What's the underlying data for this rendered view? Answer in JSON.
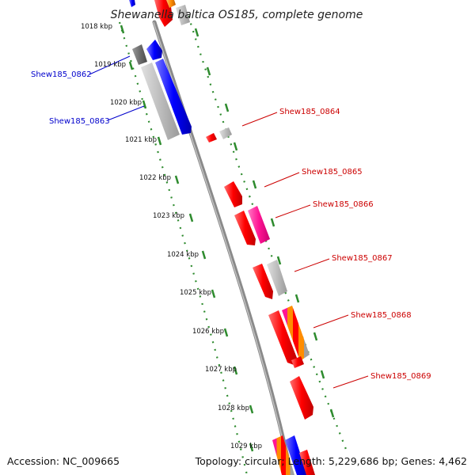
{
  "title": "Shewanella baltica OS185, complete genome",
  "accession_text": "Accession: NC_009665",
  "summary_text": "Topology: circular; Length: 5,229,686 bp; Genes: 4,462",
  "colors": {
    "backbone": "#888888",
    "tick_dots": "#2e8b2e",
    "tick_major": "#2e8b2e",
    "blue_gene": "#0000ff",
    "red_gene": "#ff0000",
    "pink_gene": "#ff1493",
    "orange_gene": "#ff8c00",
    "gray_gene": "#bbbbbb",
    "dark_gray_gene": "#777777",
    "blue_label": "#0000cc",
    "red_label": "#cc0000"
  },
  "kbp_ticks": [
    "1018 kbp",
    "1019 kbp",
    "1020 kbp",
    "1021 kbp",
    "1022 kbp",
    "1023 kbp",
    "1024 kbp",
    "1025 kbp",
    "1026 kbp",
    "1027 kbp",
    "1028 kbp",
    "1029 kbp"
  ],
  "gene_labels": [
    {
      "text": "Shew185_0862",
      "color": "blue_label"
    },
    {
      "text": "Shew185_0863",
      "color": "blue_label"
    },
    {
      "text": "Shew185_0864",
      "color": "red_label"
    },
    {
      "text": "Shew185_0865",
      "color": "red_label"
    },
    {
      "text": "Shew185_0866",
      "color": "red_label"
    },
    {
      "text": "Shew185_0867",
      "color": "red_label"
    },
    {
      "text": "Shew185_0868",
      "color": "red_label"
    },
    {
      "text": "Shew185_0869",
      "color": "red_label"
    }
  ]
}
